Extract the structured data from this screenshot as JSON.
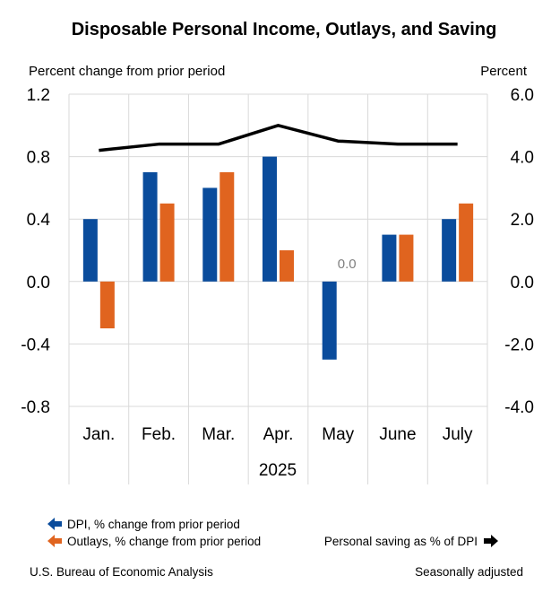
{
  "chart_data": {
    "type": "bar",
    "title": "Disposable Personal Income, Outlays, and Saving",
    "left_axis_title": "Percent change from prior period",
    "right_axis_title": "Percent",
    "categories": [
      "Jan.",
      "Feb.",
      "Mar.",
      "Apr.",
      "May",
      "June",
      "July"
    ],
    "group_label": "2025",
    "left_ylim": [
      -0.8,
      1.2
    ],
    "left_ticks": [
      "1.2",
      "0.8",
      "0.4",
      "0.0",
      "-0.4",
      "-0.8"
    ],
    "left_tick_values": [
      1.2,
      0.8,
      0.4,
      0.0,
      -0.4,
      -0.8
    ],
    "right_ylim": [
      -4.0,
      6.0
    ],
    "right_ticks": [
      "6.0",
      "4.0",
      "2.0",
      "0.0",
      "-2.0",
      "-4.0"
    ],
    "series": [
      {
        "name": "DPI, % change from prior period",
        "type": "bar",
        "axis": "left",
        "color": "#0a4c9c",
        "values": [
          0.4,
          0.7,
          0.6,
          0.8,
          -0.5,
          0.3,
          0.4
        ]
      },
      {
        "name": "Outlays, % change from prior period",
        "type": "bar",
        "axis": "left",
        "color": "#e0641f",
        "values": [
          -0.3,
          0.5,
          0.7,
          0.2,
          0.0,
          0.3,
          0.5
        ]
      },
      {
        "name": "Personal saving as % of DPI",
        "type": "line",
        "axis": "right",
        "color": "#000000",
        "values": [
          4.2,
          4.4,
          4.4,
          5.0,
          4.5,
          4.4,
          4.4
        ]
      }
    ],
    "data_labels": [
      {
        "category": "May",
        "series": "Outlays, % change from prior period",
        "text": "0.0"
      }
    ],
    "grid": true
  },
  "footer": {
    "source": "U.S. Bureau of Economic Analysis",
    "note": "Seasonally adjusted"
  }
}
